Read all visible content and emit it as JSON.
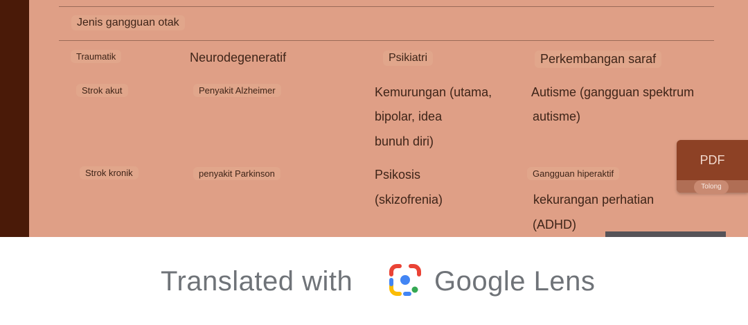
{
  "table": {
    "heading": "Jenis gangguan otak",
    "columns": [
      "Traumatik",
      "Neurodegeneratif",
      "Psikiatri",
      "Perkembangan saraf"
    ],
    "rows": [
      {
        "c1": "Strok akut",
        "c2": "Penyakit Alzheimer",
        "c3": [
          "Kemurungan (utama,",
          "bipolar, idea",
          "bunuh diri)"
        ],
        "c4": [
          "Autisme (gangguan spektrum",
          "autisme)"
        ]
      },
      {
        "c1": "Strok kronik",
        "c2": "penyakit Parkinson",
        "c3": [
          "Psikosis",
          "(skizofrenia)"
        ],
        "c4": [
          "Gangguan hiperaktif",
          "kekurangan perhatian",
          "(ADHD)"
        ]
      }
    ]
  },
  "pdf_button": {
    "label": "PDF",
    "help_label": "Tolong"
  },
  "banner": {
    "prefix": "Translated with",
    "brand": "Google Lens"
  },
  "colors": {
    "page": "#df9f86",
    "margin": "#4a1a08",
    "pdf": "#8d4125",
    "lens_red": "#ea4335",
    "lens_blue": "#4285f4",
    "lens_yellow": "#fbbc05",
    "lens_green": "#34a853"
  },
  "icons": [
    "google-lens-icon"
  ]
}
